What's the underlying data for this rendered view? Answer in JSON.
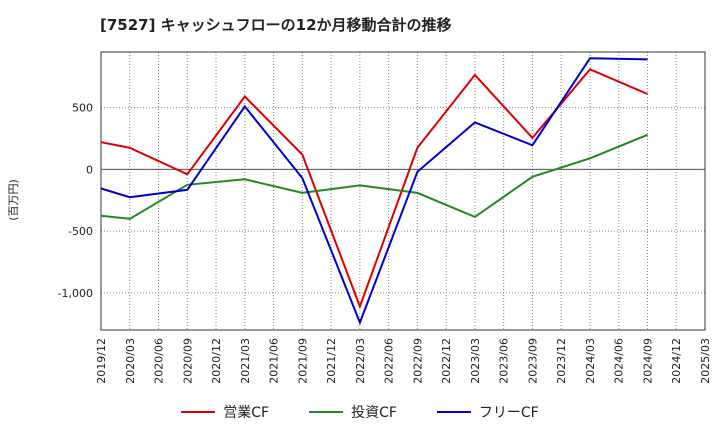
{
  "chart_data": {
    "type": "line",
    "title": "[7527]  キャッシュフローの12か月移動合計の推移",
    "ylabel": "(百万円)",
    "x": [
      "2019/12",
      "2020/03",
      "2020/06",
      "2020/09",
      "2020/12",
      "2021/03",
      "2021/06",
      "2021/09",
      "2021/12",
      "2022/03",
      "2022/06",
      "2022/09",
      "2022/12",
      "2023/03",
      "2023/06",
      "2023/09",
      "2023/12",
      "2024/03",
      "2024/06",
      "2024/09",
      "2024/12",
      "2025/03"
    ],
    "ylim": [
      -1300,
      950
    ],
    "yticks": [
      500,
      0,
      -500,
      -1000
    ],
    "ytick_labels": [
      "500",
      "0",
      "-500",
      "-1,000"
    ],
    "grid": true,
    "legend_position": "bottom",
    "series": [
      {
        "name": "営業CF",
        "color": "#dd0000",
        "values": [
          220,
          175,
          null,
          -40,
          null,
          590,
          null,
          120,
          null,
          -1110,
          null,
          175,
          null,
          765,
          null,
          255,
          null,
          810,
          null,
          610,
          null,
          null
        ]
      },
      {
        "name": "投資CF",
        "color": "#228822",
        "values": [
          -375,
          -400,
          null,
          -125,
          null,
          -80,
          null,
          -190,
          null,
          -130,
          null,
          -190,
          null,
          -385,
          null,
          -60,
          null,
          90,
          null,
          280,
          null,
          null
        ]
      },
      {
        "name": "フリーCF",
        "color": "#0000cc",
        "values": [
          -155,
          -225,
          null,
          -165,
          null,
          510,
          null,
          -70,
          null,
          -1240,
          null,
          -20,
          null,
          380,
          null,
          195,
          null,
          900,
          null,
          890,
          null,
          null
        ]
      }
    ]
  }
}
